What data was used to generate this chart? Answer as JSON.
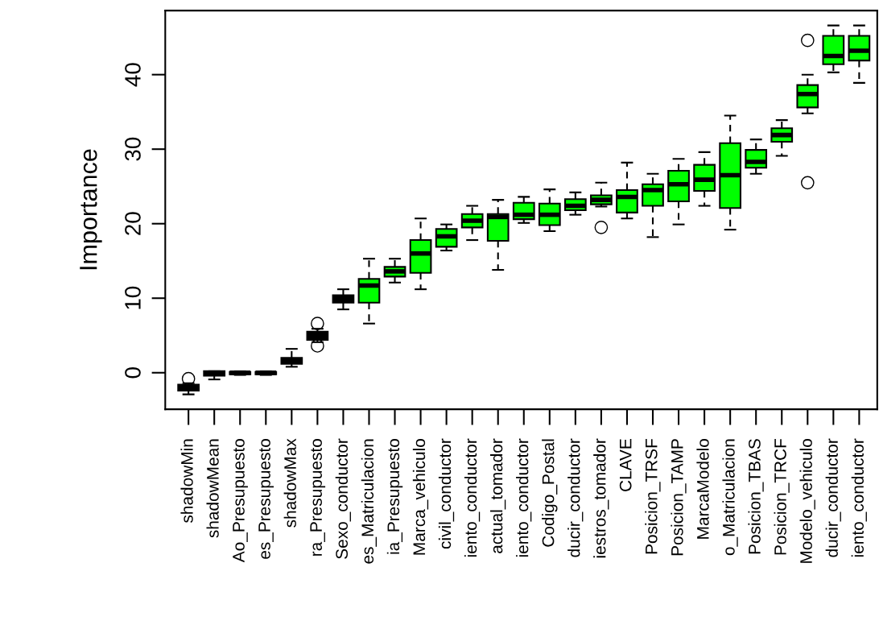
{
  "chart_data": {
    "type": "box",
    "ylabel": "Importance",
    "categories": [
      "shadowMin",
      "shadowMean",
      "Ao_Presupuesto",
      "es_Presupuesto",
      "shadowMax",
      "ra_Presupuesto",
      "Sexo_conductor",
      "es_Matriculacion",
      "ia_Presupuesto",
      "Marca_vehiculo",
      "civil_conductor",
      "iento_conductor",
      "actual_tomador",
      "iento_conductor",
      "Codigo_Postal",
      "ducir_conductor",
      "iestros_tomador",
      "CLAVE",
      "Posicion_TRSF",
      "Posicion_TAMP",
      "MarcaModelo",
      "o_Matriculacion",
      "Posicion_TBAS",
      "Posicion_TRCF",
      "Modelo_vehiculo",
      "ducir_conductor",
      "iento_conductor"
    ],
    "boxes": [
      {
        "low": -2.9,
        "q1": -2.4,
        "median": -2.0,
        "q3": -1.6,
        "high": -1.4,
        "outliers": [
          -0.8
        ]
      },
      {
        "low": -0.9,
        "q1": -0.4,
        "median": -0.1,
        "q3": 0.2,
        "high": 0.2
      },
      {
        "low": -0.3,
        "q1": -0.2,
        "median": 0.0,
        "q3": 0.1,
        "high": 0.2
      },
      {
        "low": -0.3,
        "q1": -0.2,
        "median": 0.0,
        "q3": 0.1,
        "high": 0.2
      },
      {
        "low": 0.8,
        "q1": 1.2,
        "median": 1.6,
        "q3": 2.0,
        "high": 3.2
      },
      {
        "low": 4.1,
        "q1": 4.4,
        "median": 5.0,
        "q3": 5.5,
        "high": 5.9,
        "outliers": [
          6.6,
          3.6
        ]
      },
      {
        "low": 8.5,
        "q1": 9.4,
        "median": 9.9,
        "q3": 10.4,
        "high": 11.2
      },
      {
        "low": 6.6,
        "q1": 9.4,
        "median": 11.7,
        "q3": 12.6,
        "high": 15.3
      },
      {
        "low": 12.1,
        "q1": 12.9,
        "median": 13.6,
        "q3": 14.2,
        "high": 15.3
      },
      {
        "low": 11.2,
        "q1": 13.4,
        "median": 16.0,
        "q3": 17.8,
        "high": 20.7
      },
      {
        "low": 16.4,
        "q1": 16.9,
        "median": 18.3,
        "q3": 19.3,
        "high": 19.9
      },
      {
        "low": 17.8,
        "q1": 19.5,
        "median": 20.4,
        "q3": 21.3,
        "high": 22.4
      },
      {
        "low": 13.8,
        "q1": 17.7,
        "median": 20.9,
        "q3": 21.3,
        "high": 23.2
      },
      {
        "low": 20.1,
        "q1": 20.6,
        "median": 21.2,
        "q3": 22.8,
        "high": 23.6
      },
      {
        "low": 19.0,
        "q1": 19.8,
        "median": 21.2,
        "q3": 22.7,
        "high": 24.6
      },
      {
        "low": 21.2,
        "q1": 21.8,
        "median": 22.4,
        "q3": 23.3,
        "high": 24.2
      },
      {
        "low": 22.3,
        "q1": 22.6,
        "median": 23.2,
        "q3": 23.8,
        "high": 25.5,
        "outliers": [
          19.5
        ]
      },
      {
        "low": 20.7,
        "q1": 21.5,
        "median": 23.6,
        "q3": 24.5,
        "high": 28.2
      },
      {
        "low": 18.2,
        "q1": 22.4,
        "median": 24.5,
        "q3": 25.3,
        "high": 26.7
      },
      {
        "low": 19.9,
        "q1": 23.0,
        "median": 25.3,
        "q3": 27.1,
        "high": 28.7
      },
      {
        "low": 22.4,
        "q1": 24.4,
        "median": 25.9,
        "q3": 27.9,
        "high": 29.6
      },
      {
        "low": 19.2,
        "q1": 22.1,
        "median": 26.5,
        "q3": 30.8,
        "high": 34.5
      },
      {
        "low": 26.7,
        "q1": 27.5,
        "median": 28.3,
        "q3": 29.9,
        "high": 31.3
      },
      {
        "low": 29.1,
        "q1": 31.0,
        "median": 31.9,
        "q3": 32.8,
        "high": 33.9
      },
      {
        "low": 34.8,
        "q1": 35.6,
        "median": 37.4,
        "q3": 38.6,
        "high": 40.0,
        "outliers": [
          44.6,
          25.5
        ]
      },
      {
        "low": 40.3,
        "q1": 41.4,
        "median": 42.5,
        "q3": 45.2,
        "high": 46.6
      },
      {
        "low": 38.9,
        "q1": 41.9,
        "median": 43.2,
        "q3": 45.2,
        "high": 46.6
      }
    ],
    "colors": [
      "#000000",
      "#000000",
      "#000000",
      "#000000",
      "#000000",
      "#000000",
      "#000000",
      "#00ff00",
      "#00ff00",
      "#00ff00",
      "#00ff00",
      "#00ff00",
      "#00ff00",
      "#00ff00",
      "#00ff00",
      "#00ff00",
      "#00ff00",
      "#00ff00",
      "#00ff00",
      "#00ff00",
      "#00ff00",
      "#00ff00",
      "#00ff00",
      "#00ff00",
      "#00ff00",
      "#00ff00",
      "#00ff00"
    ],
    "ylim": [
      -4.9,
      48.6
    ],
    "yticks": [
      0,
      10,
      20,
      30,
      40
    ],
    "grid": false,
    "marker": "circle"
  }
}
